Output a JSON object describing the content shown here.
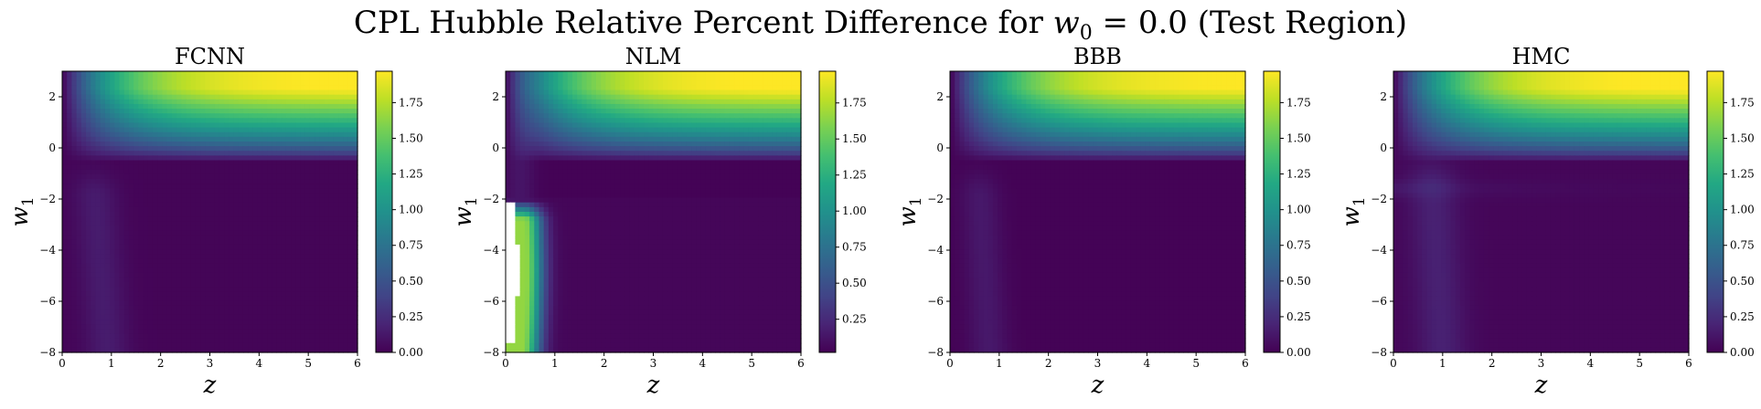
{
  "figure": {
    "title_prefix": "CPL Hubble Relative Percent Difference for ",
    "title_math_var": "w",
    "title_math_sub": "0",
    "title_suffix": " = 0.0 (Test Region)"
  },
  "colormap": "viridis",
  "chart_data": [
    {
      "type": "heatmap",
      "title": "FCNN",
      "xlabel": "z",
      "ylabel_var": "w",
      "ylabel_sub": "1",
      "xlim": [
        0,
        6
      ],
      "ylim": [
        -8,
        3
      ],
      "xticks": [
        0,
        1,
        2,
        3,
        4,
        5,
        6
      ],
      "yticks": [
        -8,
        -6,
        -4,
        -2,
        0,
        2
      ],
      "colorbar": {
        "min": 0.0,
        "max": 1.97,
        "ticks": [
          "0.00",
          "0.25",
          "0.50",
          "0.75",
          "1.00",
          "1.25",
          "1.50",
          "1.75"
        ]
      },
      "variant": "fcnn"
    },
    {
      "type": "heatmap",
      "title": "NLM",
      "xlabel": "z",
      "ylabel_var": "w",
      "ylabel_sub": "1",
      "xlim": [
        0,
        6
      ],
      "ylim": [
        -8,
        3
      ],
      "xticks": [
        0,
        1,
        2,
        3,
        4,
        5,
        6
      ],
      "yticks": [
        -8,
        -6,
        -4,
        -2,
        0,
        2
      ],
      "colorbar": {
        "min": 0.02,
        "max": 1.97,
        "ticks": [
          "0.25",
          "0.50",
          "0.75",
          "1.00",
          "1.25",
          "1.50",
          "1.75"
        ]
      },
      "variant": "nlm"
    },
    {
      "type": "heatmap",
      "title": "BBB",
      "xlabel": "z",
      "ylabel_var": "w",
      "ylabel_sub": "1",
      "xlim": [
        0,
        6
      ],
      "ylim": [
        -8,
        3
      ],
      "xticks": [
        0,
        1,
        2,
        3,
        4,
        5,
        6
      ],
      "yticks": [
        -8,
        -6,
        -4,
        -2,
        0,
        2
      ],
      "colorbar": {
        "min": 0.0,
        "max": 1.97,
        "ticks": [
          "0.00",
          "0.25",
          "0.50",
          "0.75",
          "1.00",
          "1.25",
          "1.50",
          "1.75"
        ]
      },
      "variant": "bbb"
    },
    {
      "type": "heatmap",
      "title": "HMC",
      "xlabel": "z",
      "ylabel_var": "w",
      "ylabel_sub": "1",
      "xlim": [
        0,
        6
      ],
      "ylim": [
        -8,
        3
      ],
      "xticks": [
        0,
        1,
        2,
        3,
        4,
        5,
        6
      ],
      "yticks": [
        -8,
        -6,
        -4,
        -2,
        0,
        2
      ],
      "colorbar": {
        "min": 0.0,
        "max": 1.97,
        "ticks": [
          "0.00",
          "0.25",
          "0.50",
          "0.75",
          "1.00",
          "1.25",
          "1.50",
          "1.75"
        ]
      },
      "variant": "hmc"
    }
  ]
}
